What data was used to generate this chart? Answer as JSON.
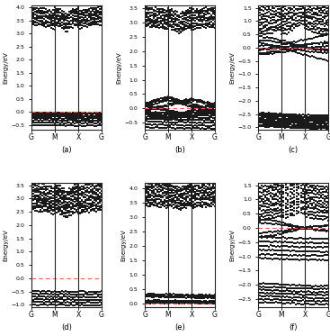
{
  "panels": [
    {
      "label": "(a)",
      "ylabel": "Energy/eV",
      "xtick_labels": [
        "G",
        "M",
        "X",
        "G"
      ],
      "ylim": [
        -0.7,
        4.1
      ],
      "yticks": [
        -0.5,
        0.0,
        0.5,
        1.0,
        1.5,
        2.0,
        2.5,
        3.0,
        3.5,
        4.0
      ],
      "fermi_level": 0.0,
      "vlines": [
        0.33,
        0.67
      ]
    },
    {
      "label": "(b)",
      "ylabel": "Energy/eV",
      "xtick_labels": [
        "G",
        "M",
        "X",
        "G"
      ],
      "ylim": [
        -0.75,
        3.6
      ],
      "yticks": [
        -0.5,
        0.0,
        0.5,
        1.0,
        1.5,
        2.0,
        2.5,
        3.0,
        3.5
      ],
      "fermi_level": 0.0,
      "vlines": [
        0.33,
        0.67
      ]
    },
    {
      "label": "(c)",
      "ylabel": "Energy/eV",
      "xtick_labels": [
        "G",
        "M",
        "X",
        "G"
      ],
      "ylim": [
        -3.1,
        1.6
      ],
      "yticks": [
        -3.0,
        -2.5,
        -2.0,
        -1.5,
        -1.0,
        -0.5,
        0.0,
        0.5,
        1.0,
        1.5
      ],
      "fermi_level": 0.0,
      "vlines": [
        0.33,
        0.67
      ]
    },
    {
      "label": "(d)",
      "ylabel": "Energy/eV",
      "xtick_labels": [
        "G",
        "M",
        "X",
        "G"
      ],
      "ylim": [
        -1.1,
        3.6
      ],
      "yticks": [
        -1.0,
        -0.5,
        0.0,
        0.5,
        1.0,
        1.5,
        2.0,
        2.5,
        3.0,
        3.5
      ],
      "fermi_level": 0.0,
      "vlines": [
        0.33,
        0.67
      ]
    },
    {
      "label": "(e)",
      "ylabel": "Energy/eV",
      "xtick_labels": [
        "G",
        "M",
        "X",
        "G"
      ],
      "ylim": [
        -0.15,
        4.2
      ],
      "yticks": [
        0.0,
        0.5,
        1.0,
        1.5,
        2.0,
        2.5,
        3.0,
        3.5,
        4.0
      ],
      "fermi_level": 0.0,
      "vlines": [
        0.33,
        0.67
      ]
    },
    {
      "label": "(f)",
      "ylabel": "Energy/eV",
      "xtick_labels": [
        "G",
        "M",
        "X",
        "G"
      ],
      "ylim": [
        -2.8,
        1.6
      ],
      "yticks": [
        -2.5,
        -2.0,
        -1.5,
        -1.0,
        -0.5,
        0.0,
        0.5,
        1.0,
        1.5
      ],
      "fermi_level": 0.0,
      "vlines": [
        0.33,
        0.67
      ]
    }
  ],
  "dot_color": "#1a1a1a",
  "fermi_color": "#ff5555",
  "vline_color": "#222222",
  "background": "#ffffff"
}
